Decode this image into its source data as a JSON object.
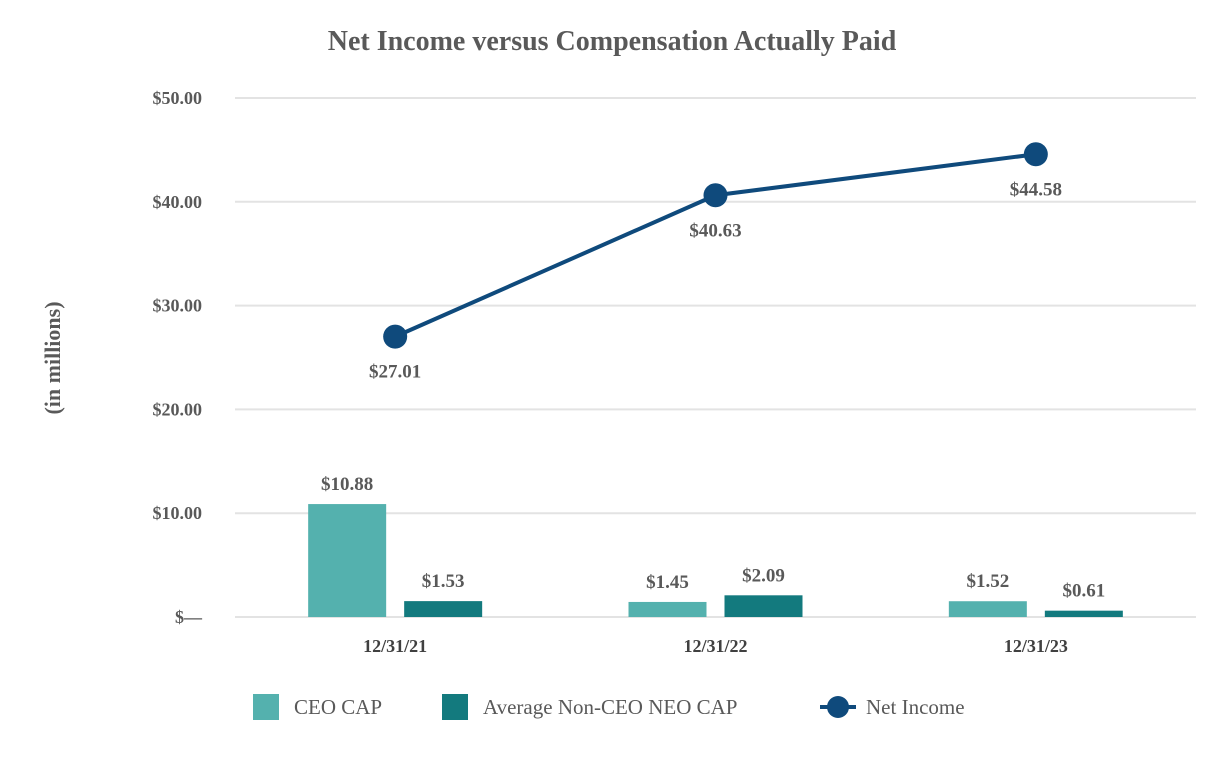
{
  "chart_data": {
    "type": "bar",
    "title": "Net Income versus Compensation Actually Paid",
    "ylabel": "(in millions)",
    "xlabel": "",
    "ylim": [
      0,
      50
    ],
    "yticks": [
      0,
      10,
      20,
      30,
      40,
      50
    ],
    "ytick_labels": [
      "$—",
      "$10.00",
      "$20.00",
      "$30.00",
      "$40.00",
      "$50.00"
    ],
    "categories": [
      "12/31/21",
      "12/31/22",
      "12/31/23"
    ],
    "grid": true,
    "legend_position": "bottom",
    "series": [
      {
        "name": "CEO CAP",
        "kind": "bar",
        "color": "#54b1ae",
        "values": [
          10.88,
          1.45,
          1.52
        ],
        "labels": [
          "$10.88",
          "$1.45",
          "$1.52"
        ]
      },
      {
        "name": "Average Non-CEO NEO CAP",
        "kind": "bar",
        "color": "#137a7e",
        "values": [
          1.53,
          2.09,
          0.61
        ],
        "labels": [
          "$1.53",
          "$2.09",
          "$0.61"
        ]
      },
      {
        "name": "Net Income",
        "kind": "line",
        "color": "#0f4a7c",
        "values": [
          27.01,
          40.63,
          44.58
        ],
        "labels": [
          "$27.01",
          "$40.63",
          "$44.58"
        ]
      }
    ]
  }
}
